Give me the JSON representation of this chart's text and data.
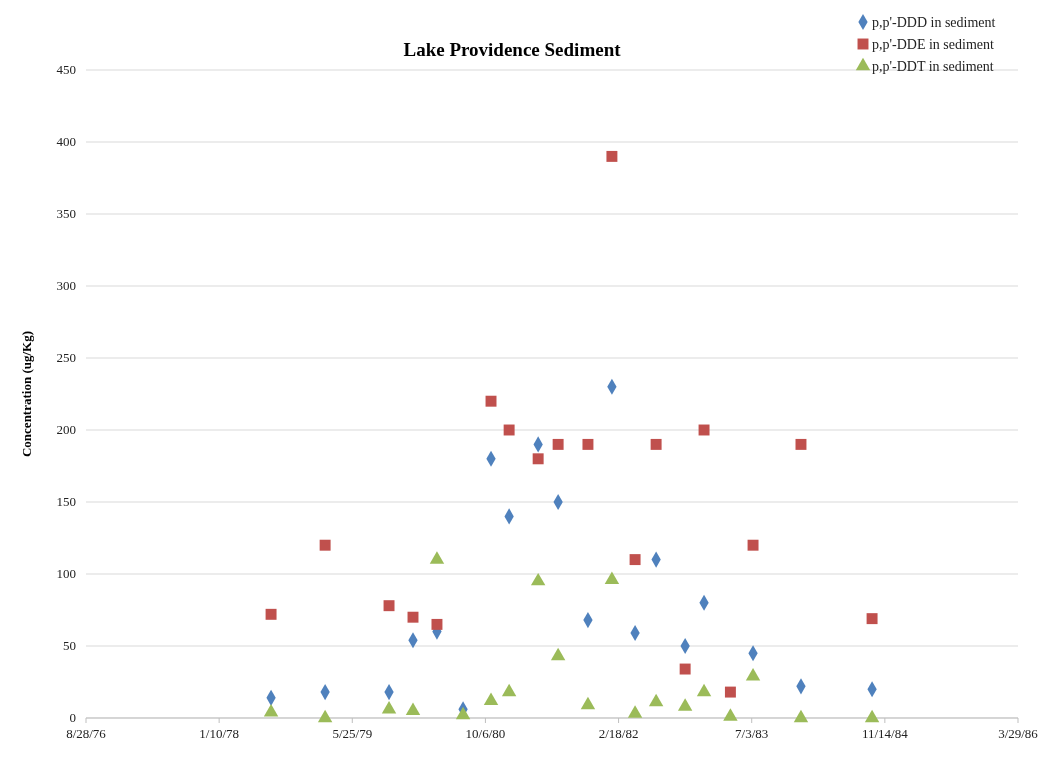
{
  "chart_data": {
    "type": "scatter",
    "title": "Lake Providence Sediment",
    "ylabel": "Concentration (ug/Kg)",
    "x": [
      "1978-07-24",
      "1979-02-12",
      "1979-10-10",
      "1980-01-08",
      "1980-04-07",
      "1980-07-14",
      "1980-10-27",
      "1981-01-03",
      "1981-04-22",
      "1981-07-06",
      "1981-10-26",
      "1982-01-24",
      "1982-04-21",
      "1982-07-09",
      "1982-10-26",
      "1983-01-05",
      "1983-04-14",
      "1983-07-08",
      "1984-01-04",
      "1984-09-27"
    ],
    "series": [
      {
        "name": "p,p'-DDD in sediment",
        "color": "#4f81bd",
        "marker": "diamond",
        "values": [
          14,
          18,
          18,
          54,
          60,
          6,
          180,
          140,
          190,
          150,
          68,
          230,
          59,
          110,
          50,
          80,
          null,
          45,
          22,
          20
        ]
      },
      {
        "name": "p,p'-DDE in sediment",
        "color": "#c0504d",
        "marker": "square",
        "values": [
          72,
          120,
          78,
          70,
          65,
          null,
          220,
          200,
          180,
          190,
          190,
          390,
          110,
          190,
          34,
          200,
          18,
          120,
          190,
          69
        ]
      },
      {
        "name": "p,p'-DDT in sediment",
        "color": "#9bbb59",
        "marker": "triangle",
        "values": [
          4,
          0,
          6,
          5,
          110,
          2,
          12,
          18,
          95,
          43,
          9,
          96,
          3,
          11,
          8,
          18,
          1,
          29,
          0,
          0
        ]
      }
    ],
    "xlim": [
      "1976-08-28",
      "1986-03-29"
    ],
    "xticks": [
      {
        "value": "1976-08-28",
        "label": "8/28/76"
      },
      {
        "value": "1978-01-10",
        "label": "1/10/78"
      },
      {
        "value": "1979-05-25",
        "label": "5/25/79"
      },
      {
        "value": "1980-10-06",
        "label": "10/6/80"
      },
      {
        "value": "1982-02-18",
        "label": "2/18/82"
      },
      {
        "value": "1983-07-03",
        "label": "7/3/83"
      },
      {
        "value": "1984-11-14",
        "label": "11/14/84"
      },
      {
        "value": "1986-03-29",
        "label": "3/29/86"
      }
    ],
    "ylim": [
      0,
      450
    ],
    "yticks": [
      0,
      50,
      100,
      150,
      200,
      250,
      300,
      350,
      400,
      450
    ],
    "grid": "y",
    "legend": "top right"
  }
}
